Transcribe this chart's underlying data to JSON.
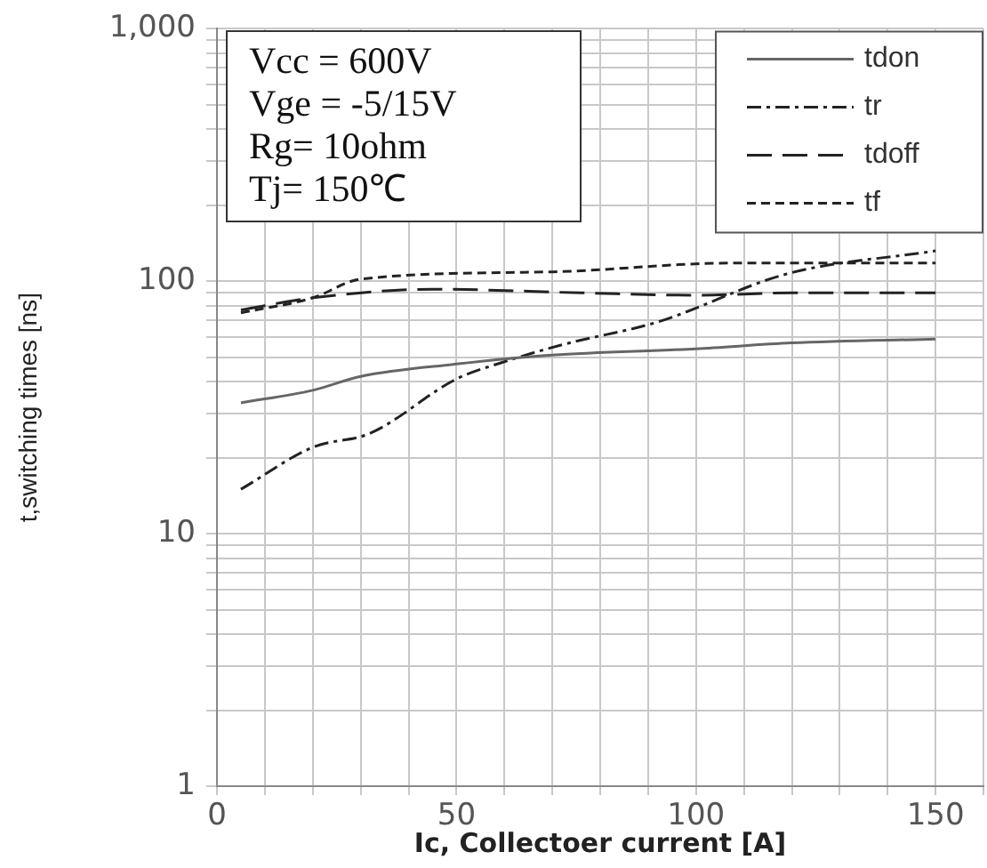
{
  "chart_data": {
    "type": "line",
    "xlabel": "Ic, Collectoer current [A]",
    "ylabel": "t,switching times [ns]",
    "annotations": [
      "Vcc = 600V",
      "Vge = -5/15V",
      "Rg= 10ohm",
      "Tj= 150℃"
    ],
    "log": "y",
    "grid": true,
    "legend": "top right",
    "marker": "none",
    "xlim": [
      0,
      160
    ],
    "xticks": [
      0,
      {
        "value": 10,
        "label": null
      },
      {
        "value": 20,
        "label": null
      },
      {
        "value": 30,
        "label": null
      },
      {
        "value": 40,
        "label": null
      },
      50,
      {
        "value": 60,
        "label": null
      },
      {
        "value": 70,
        "label": null
      },
      {
        "value": 80,
        "label": null
      },
      {
        "value": 90,
        "label": null
      },
      100,
      {
        "value": 110,
        "label": null
      },
      {
        "value": 120,
        "label": null
      },
      {
        "value": 130,
        "label": null
      },
      {
        "value": 140,
        "label": null
      },
      150,
      {
        "value": 160,
        "label": null
      }
    ],
    "ylim": [
      1,
      1000
    ],
    "yticks": [
      1,
      {
        "value": 2,
        "label": null
      },
      {
        "value": 3,
        "label": null
      },
      {
        "value": 4,
        "label": null
      },
      {
        "value": 5,
        "label": null
      },
      {
        "value": 6,
        "label": null
      },
      {
        "value": 7,
        "label": null
      },
      {
        "value": 8,
        "label": null
      },
      {
        "value": 9,
        "label": null
      },
      10,
      {
        "value": 20,
        "label": null
      },
      {
        "value": 30,
        "label": null
      },
      {
        "value": 40,
        "label": null
      },
      {
        "value": 50,
        "label": null
      },
      {
        "value": 60,
        "label": null
      },
      {
        "value": 70,
        "label": null
      },
      {
        "value": 80,
        "label": null
      },
      {
        "value": 90,
        "label": null
      },
      100,
      {
        "value": 200,
        "label": null
      },
      {
        "value": 300,
        "label": null
      },
      {
        "value": 400,
        "label": null
      },
      {
        "value": 500,
        "label": null
      },
      {
        "value": 600,
        "label": null
      },
      {
        "value": 700,
        "label": null
      },
      {
        "value": 800,
        "label": null
      },
      {
        "value": 900,
        "label": null
      },
      {
        "value": 1000,
        "label": "1,000"
      }
    ],
    "series": [
      {
        "name": "tdon",
        "color": "#666666",
        "line_style": "solid",
        "x": [
          5,
          20,
          30,
          50,
          70,
          100,
          120,
          150
        ],
        "values": [
          33,
          37,
          42,
          47,
          51,
          54,
          57,
          59
        ]
      },
      {
        "name": "tr",
        "color": "#222222",
        "line_style": "dashdot",
        "x": [
          5,
          20,
          32,
          50,
          60,
          72,
          92,
          119,
          150
        ],
        "values": [
          15,
          22,
          25,
          41,
          48,
          56,
          69,
          107,
          132
        ]
      },
      {
        "name": "tdoff",
        "color": "#222222",
        "line_style": "dashed",
        "x": [
          5,
          20,
          45,
          76,
          100,
          120,
          150
        ],
        "values": [
          77,
          86,
          93,
          90,
          88,
          90,
          90
        ]
      },
      {
        "name": "tf",
        "color": "#222222",
        "line_style": "dotted",
        "x": [
          5,
          20,
          30,
          70,
          107,
          150
        ],
        "values": [
          75,
          86,
          102,
          109,
          118,
          118
        ]
      }
    ]
  }
}
